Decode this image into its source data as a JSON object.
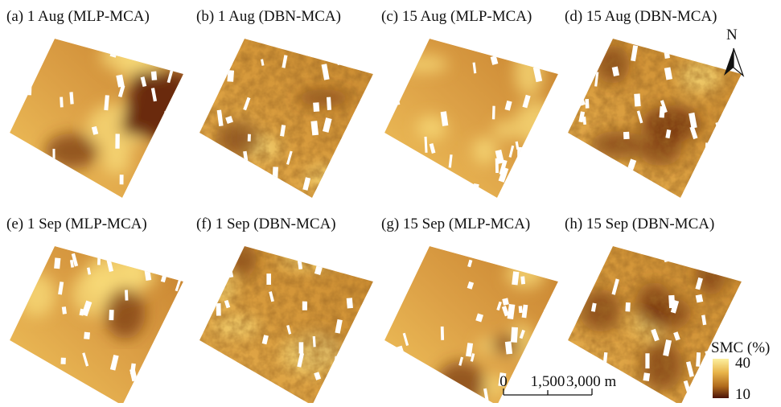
{
  "panels": [
    {
      "title": "(a) 1 Aug (MLP-MCA)"
    },
    {
      "title": "(b) 1 Aug (DBN-MCA)"
    },
    {
      "title": "(c) 15 Aug (MLP-MCA)"
    },
    {
      "title": "(d) 15 Aug (DBN-MCA)"
    },
    {
      "title": "(e) 1 Sep (MLP-MCA)"
    },
    {
      "title": "(f) 1 Sep (DBN-MCA)"
    },
    {
      "title": "(g) 15 Sep (MLP-MCA)"
    },
    {
      "title": "(h) 15 Sep (DBN-MCA)"
    }
  ],
  "north_arrow": "N",
  "scale_bar": {
    "labels": [
      "0",
      "1,500",
      "3,000 m"
    ]
  },
  "legend": {
    "title": "SMC (%)",
    "max": 40,
    "min": 10
  }
}
